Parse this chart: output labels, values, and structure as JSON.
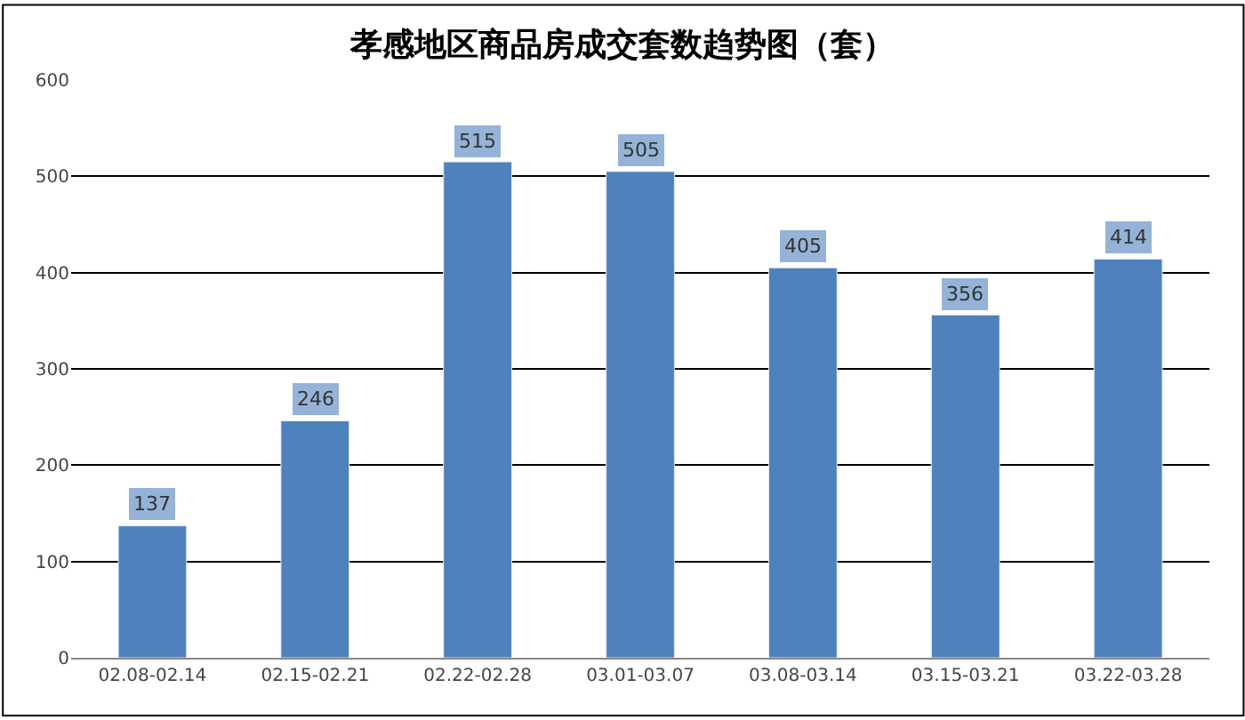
{
  "chart_data": {
    "type": "bar",
    "title": "孝感地区商品房成交套数趋势图（套）",
    "categories": [
      "02.08-02.14",
      "02.15-02.21",
      "02.22-02.28",
      "03.01-03.07",
      "03.08-03.14",
      "03.15-03.21",
      "03.22-03.28"
    ],
    "values": [
      137,
      246,
      515,
      505,
      405,
      356,
      414
    ],
    "color": "#4f81bd",
    "ylim": [
      0,
      600
    ],
    "yticks": [
      0,
      100,
      200,
      300,
      400,
      500,
      600
    ],
    "grid": "y",
    "data_labels": true
  }
}
